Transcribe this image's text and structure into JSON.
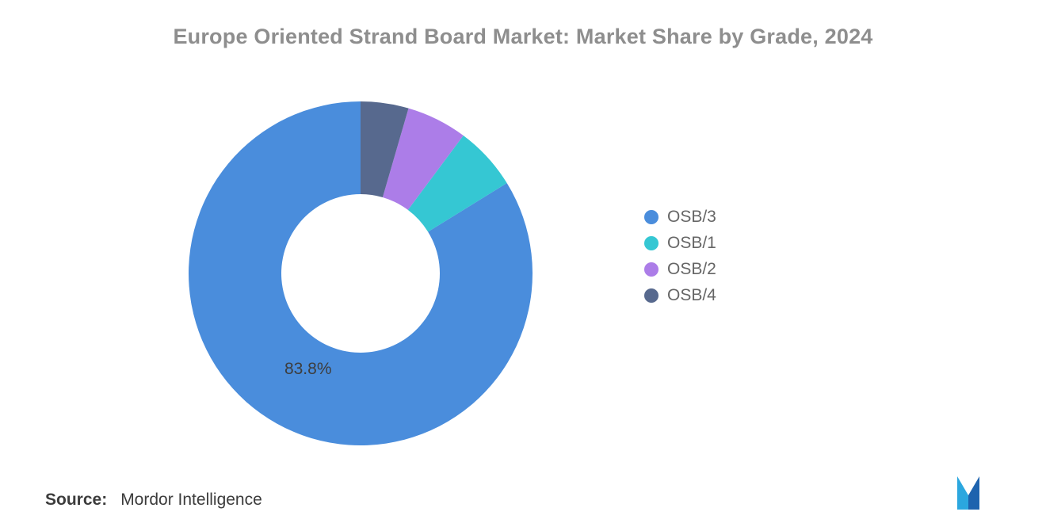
{
  "chart_data": {
    "type": "pie",
    "subtype": "donut",
    "title": "Europe Oriented Strand Board Market: Market Share by Grade, 2024",
    "legend_position": "right",
    "start_angle": "top",
    "direction": "counterclockwise",
    "inner_radius_ratio": 0.46,
    "segments": [
      {
        "label": "OSB/3",
        "value": 83.8,
        "color": "#4A8DDC",
        "data_label": "83.8%"
      },
      {
        "label": "OSB/1",
        "value": 6.0,
        "color": "#35C7D3",
        "data_label": ""
      },
      {
        "label": "OSB/2",
        "value": 5.7,
        "color": "#AC7DE8",
        "data_label": ""
      },
      {
        "label": "OSB/4",
        "value": 4.5,
        "color": "#57698E",
        "data_label": ""
      }
    ]
  },
  "source": {
    "prefix": "Source:",
    "text": "Mordor Intelligence"
  },
  "logo": {
    "color_light": "#2BA7DF",
    "color_dark": "#1E63AE"
  }
}
